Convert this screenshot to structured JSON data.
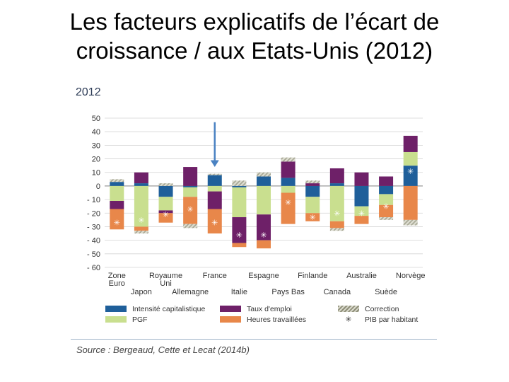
{
  "slide": {
    "title_line1": "Les facteurs explicatifs de l’écart de",
    "title_line2": "croissance / aux Etats-Unis (2012)"
  },
  "chart_data": {
    "type": "bar",
    "stacked": true,
    "title": "2012",
    "ylim": [
      -60,
      50
    ],
    "yticks": [
      {
        "value": 50,
        "label": "50"
      },
      {
        "value": 40,
        "label": "40"
      },
      {
        "value": 30,
        "label": "30"
      },
      {
        "value": 20,
        "label": "20"
      },
      {
        "value": 10,
        "label": "10"
      },
      {
        "value": 0,
        "label": "0"
      },
      {
        "value": -10,
        "label": "- 10"
      },
      {
        "value": -20,
        "label": "- 20"
      },
      {
        "value": -30,
        "label": "- 30"
      },
      {
        "value": -40,
        "label": "- 40"
      },
      {
        "value": -50,
        "label": "- 50"
      },
      {
        "value": -60,
        "label": "- 60"
      }
    ],
    "categories": [
      "Zone Euro",
      "Japon",
      "Royaume Uni",
      "Allemagne",
      "France",
      "Italie",
      "Espagne",
      "Pays Bas",
      "Finlande",
      "Canada",
      "Australie",
      "Suède",
      "Norvège"
    ],
    "category_labels": [
      {
        "line1": "Zone",
        "line2": "Euro",
        "row": 1
      },
      {
        "line1": "Japon",
        "line2": "",
        "row": 2
      },
      {
        "line1": "Royaume",
        "line2": "Uni",
        "row": 1
      },
      {
        "line1": "Allemagne",
        "line2": "",
        "row": 2
      },
      {
        "line1": "France",
        "line2": "",
        "row": 1
      },
      {
        "line1": "Italie",
        "line2": "",
        "row": 2
      },
      {
        "line1": "Espagne",
        "line2": "",
        "row": 1
      },
      {
        "line1": "Pays Bas",
        "line2": "",
        "row": 2
      },
      {
        "line1": "Finlande",
        "line2": "",
        "row": 1
      },
      {
        "line1": "Canada",
        "line2": "",
        "row": 2
      },
      {
        "line1": "Australie",
        "line2": "",
        "row": 1
      },
      {
        "line1": "Suède",
        "line2": "",
        "row": 2
      },
      {
        "line1": "Norvège",
        "line2": "",
        "row": 1
      }
    ],
    "series": [
      {
        "key": "intensite",
        "name": "Intensité capitalistique",
        "color": "#1f5f9a",
        "values": [
          3,
          2,
          -8,
          -1,
          8,
          -1,
          7,
          6,
          -8,
          2,
          -15,
          -6,
          15
        ]
      },
      {
        "key": "pgf",
        "name": "PGF",
        "color": "#c9df8f",
        "values": [
          -11,
          -30,
          -10,
          -7,
          -4,
          -22,
          -21,
          -5,
          -12,
          -26,
          -7,
          -8,
          10
        ]
      },
      {
        "key": "emploi",
        "name": "Taux d’emploi",
        "color": "#6e2068",
        "values": [
          -6,
          8,
          -2,
          14,
          -13,
          -19,
          -19,
          12,
          2,
          11,
          10,
          7,
          12
        ]
      },
      {
        "key": "heures",
        "name": "Heures travaillées",
        "color": "#e8874a",
        "values": [
          -15,
          -3,
          -7,
          -20,
          -18,
          -3,
          -6,
          -23,
          -6,
          -5,
          -6,
          -9,
          -25
        ]
      },
      {
        "key": "correction",
        "name": "Correction",
        "color": "#b7b7a5",
        "values": [
          2,
          -2,
          2,
          -3,
          1,
          4,
          3,
          3,
          2,
          -2,
          0,
          -2,
          -4
        ]
      }
    ],
    "pib_par_habitant": {
      "name": "PIB par habitant",
      "marker": "✳",
      "values": [
        -27,
        -25,
        -21,
        -17,
        -27,
        -36,
        -36,
        -12,
        -23,
        -20,
        -20,
        -15,
        11
      ]
    },
    "legend": [
      {
        "series": "intensite",
        "label": "Intensité capitalistique"
      },
      {
        "series": "emploi",
        "label": "Taux d'emploi"
      },
      {
        "series": "correction",
        "label": "Correction"
      },
      {
        "series": "pgf",
        "label": "PGF"
      },
      {
        "series": "heures",
        "label": "Heures travaillées"
      },
      {
        "series": "pib",
        "label": "PIB par habitant"
      }
    ],
    "annotation": "arrow pointing down to France",
    "annotation_category": "France",
    "source": "Source : Bergeaud, Cette et Lecat (2014b)"
  }
}
